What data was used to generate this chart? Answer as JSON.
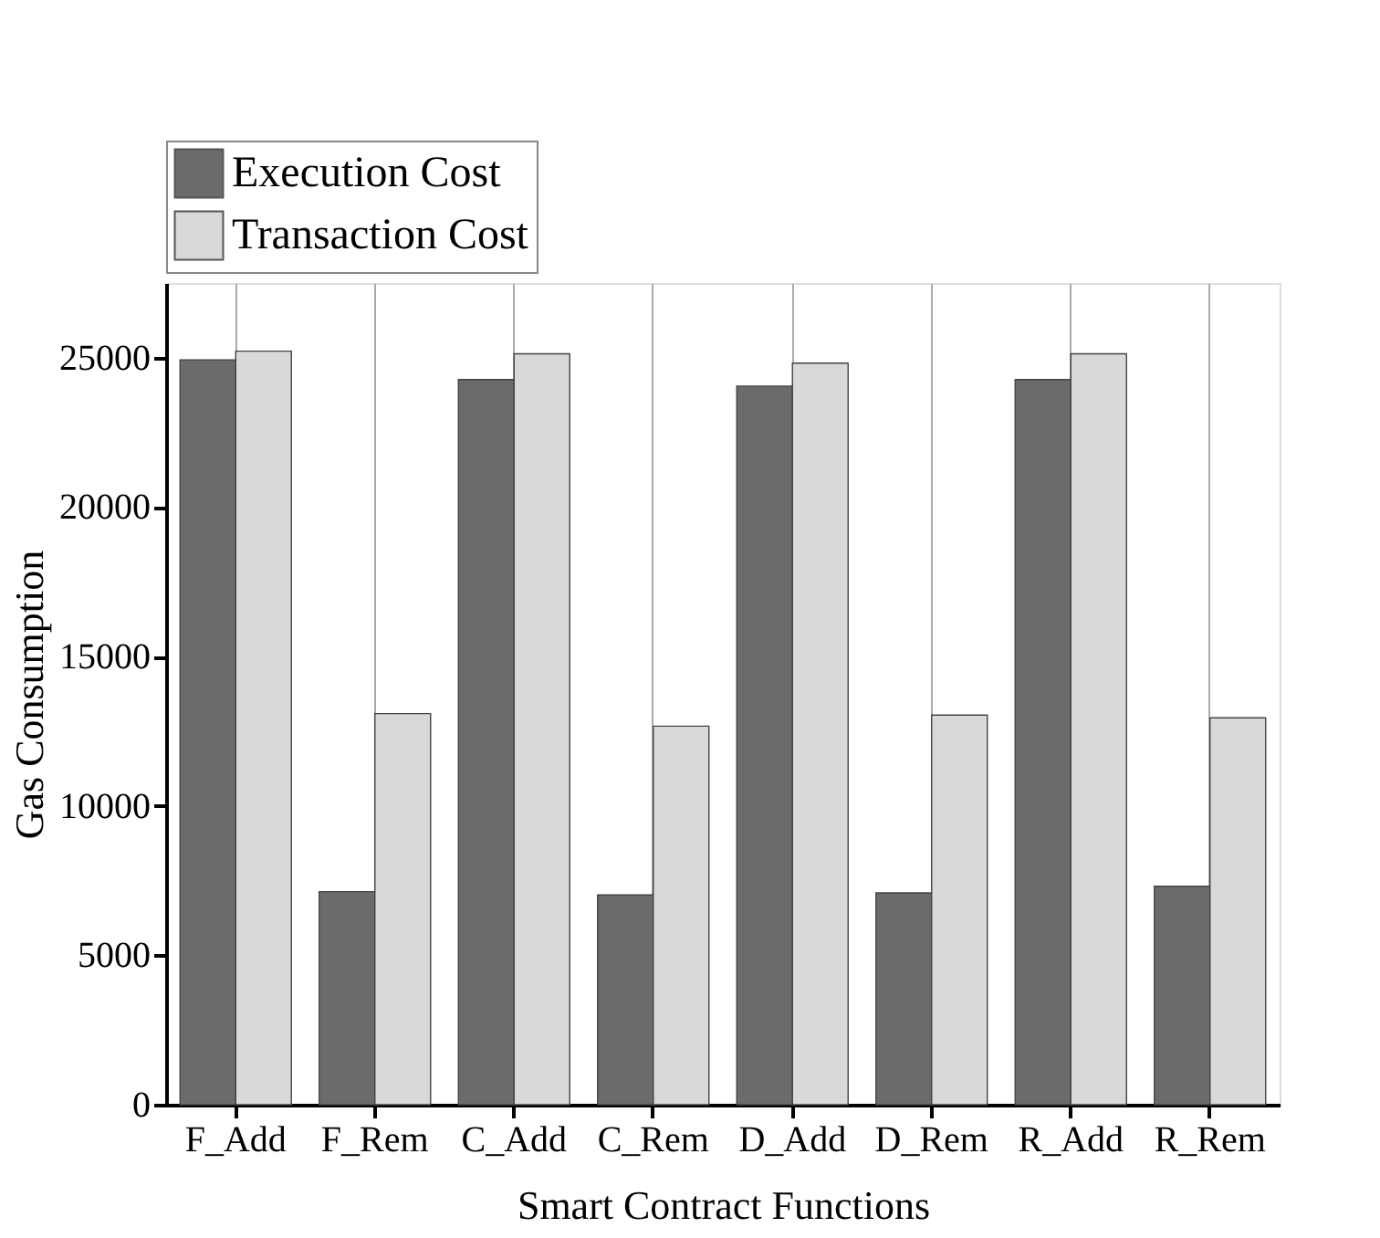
{
  "chart_data": {
    "type": "bar",
    "xlabel": "Smart Contract Functions",
    "ylabel": "Gas Consumption",
    "categories": [
      "F_Add",
      "F_Rem",
      "C_Add",
      "C_Rem",
      "D_Add",
      "D_Rem",
      "R_Add",
      "R_Rem"
    ],
    "series": [
      {
        "name": "Execution Cost",
        "color": "#6b6b6b",
        "values": [
          24930,
          7130,
          24270,
          7020,
          24050,
          7090,
          24270,
          7310
        ]
      },
      {
        "name": "Transaction Cost",
        "color": "#d9d9d9",
        "values": [
          25220,
          13090,
          25130,
          12670,
          24820,
          13040,
          25130,
          12950
        ]
      }
    ],
    "ylim": [
      0,
      27500
    ],
    "yticks": [
      0,
      5000,
      10000,
      15000,
      20000,
      25000
    ],
    "grid": "x",
    "legend": "top left"
  }
}
